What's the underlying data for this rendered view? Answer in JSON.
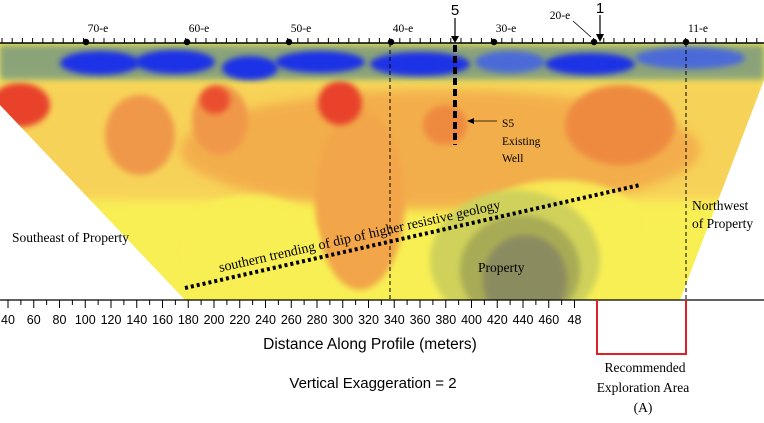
{
  "colors": {
    "deep_blue": "#1f33e6",
    "blue": "#4c6ad8",
    "teal": "#7f9b7f",
    "olive": "#a8ab55",
    "yellow_green": "#cfd15a",
    "yellow": "#f8ef55",
    "light_orange": "#f7c95a",
    "orange": "#f2a648",
    "dark_orange": "#ee8a40",
    "red": "#e8432b",
    "gray_olive": "#8b8b60"
  },
  "stations": [
    {
      "label": "70-e"
    },
    {
      "label": "60-e"
    },
    {
      "label": "50-e"
    },
    {
      "label": "40-e"
    },
    {
      "label": "30-e"
    },
    {
      "label": "20-e"
    },
    {
      "label": "11-e"
    }
  ],
  "markers": {
    "well_number": "5",
    "point_one": "1"
  },
  "x_axis": {
    "title": "Distance Along Profile (meters)",
    "ticks": [
      "40",
      "60",
      "80",
      "100",
      "120",
      "140",
      "160",
      "180",
      "200",
      "220",
      "240",
      "260",
      "280",
      "300",
      "320",
      "340",
      "360",
      "380",
      "400",
      "420",
      "440",
      "460",
      "48"
    ]
  },
  "annotations": {
    "southeast": "Southeast of Property",
    "northwest_line1": "Northwest",
    "northwest_line2": "of Property",
    "dip_text": "southern trending of dip of higher resistive geology",
    "property": "Property",
    "well_line1": "S5",
    "well_line2": "Existing",
    "well_line3": "Well",
    "vertical_exaggeration": "Vertical Exaggeration = 2",
    "recommended_line1": "Recommended",
    "recommended_line2": "Exploration Area",
    "recommended_line3": "(A)"
  }
}
